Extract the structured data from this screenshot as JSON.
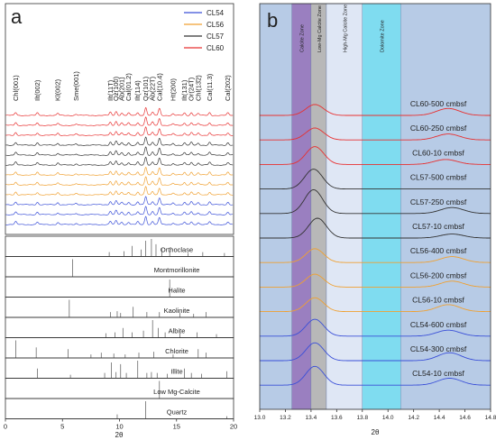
{
  "chart_data": [
    {
      "type": "line",
      "panel_label": "a",
      "xlabel": "2θ",
      "xlim": [
        0,
        20
      ],
      "x_ticks": [
        "0",
        "5",
        "10",
        "15",
        "20"
      ],
      "legend": [
        {
          "name": "CL54",
          "color": "#3a4fd8"
        },
        {
          "name": "CL56",
          "color": "#f0a030"
        },
        {
          "name": "CL57",
          "color": "#333333"
        },
        {
          "name": "CL60",
          "color": "#e83030"
        }
      ],
      "peak_labels": [
        {
          "text": "Chl(001)",
          "x": 0.9
        },
        {
          "text": "Ilt(002)",
          "x": 2.8
        },
        {
          "text": "Kl(002)",
          "x": 4.6
        },
        {
          "text": "Sme(001)",
          "x": 6.2
        },
        {
          "text": "Ilt(11T)",
          "x": 9.2
        },
        {
          "text": "Qz(100)",
          "x": 9.7
        },
        {
          "text": "Ab(201)",
          "x": 10.2
        },
        {
          "text": "Cal(01.2)",
          "x": 10.8
        },
        {
          "text": "Ilt(114)",
          "x": 11.6
        },
        {
          "text": "Qz(101)",
          "x": 12.3
        },
        {
          "text": "Ab(22T)",
          "x": 12.9
        },
        {
          "text": "Cal(10.4)",
          "x": 13.5
        },
        {
          "text": "Ht(200)",
          "x": 14.7
        },
        {
          "text": "Ilt(131)",
          "x": 15.7
        },
        {
          "text": "Or(24T)",
          "x": 16.3
        },
        {
          "text": "Chl(13̄2)",
          "x": 16.9
        },
        {
          "text": "Cal(11.3)",
          "x": 17.9
        },
        {
          "text": "Cal(202)",
          "x": 19.5
        }
      ],
      "series_order": [
        {
          "name": "CL60",
          "color": "#e83030"
        },
        {
          "name": "CL60",
          "color": "#e83030"
        },
        {
          "name": "CL60",
          "color": "#e83030"
        },
        {
          "name": "CL57",
          "color": "#333333"
        },
        {
          "name": "CL57",
          "color": "#333333"
        },
        {
          "name": "CL57",
          "color": "#333333"
        },
        {
          "name": "CL56",
          "color": "#f0a030"
        },
        {
          "name": "CL56",
          "color": "#f0a030"
        },
        {
          "name": "CL56",
          "color": "#f0a030"
        },
        {
          "name": "CL54",
          "color": "#3a4fd8"
        },
        {
          "name": "CL54",
          "color": "#3a4fd8"
        },
        {
          "name": "CL54",
          "color": "#3a4fd8"
        }
      ],
      "peaks_2theta": [
        0.9,
        2.8,
        4.6,
        6.2,
        9.2,
        9.7,
        10.2,
        10.8,
        11.6,
        12.3,
        12.9,
        13.5,
        14.7,
        15.7,
        16.3,
        16.9,
        17.9,
        19.5
      ],
      "peak_intensity": [
        0.35,
        0.3,
        0.25,
        0.15,
        0.4,
        0.5,
        0.3,
        0.3,
        0.35,
        1.0,
        0.4,
        0.85,
        0.2,
        0.3,
        0.35,
        0.25,
        0.35,
        0.3
      ],
      "reference_patterns": [
        {
          "name": "Orthoclase",
          "lines": [
            [
              9.1,
              0.25
            ],
            [
              10.4,
              0.3
            ],
            [
              11.1,
              0.6
            ],
            [
              11.9,
              0.4
            ],
            [
              12.3,
              0.9
            ],
            [
              12.8,
              1.0
            ],
            [
              13.2,
              0.7
            ],
            [
              13.7,
              0.45
            ],
            [
              14.4,
              0.3
            ],
            [
              16.0,
              0.2
            ],
            [
              17.3,
              0.25
            ],
            [
              19.2,
              0.2
            ]
          ]
        },
        {
          "name": "Montmorillonite",
          "lines": [
            [
              5.9,
              1.0
            ]
          ]
        },
        {
          "name": "Halite",
          "lines": [
            [
              14.4,
              1.0
            ]
          ]
        },
        {
          "name": "Kaolinite",
          "lines": [
            [
              5.6,
              1.0
            ],
            [
              9.2,
              0.3
            ],
            [
              9.8,
              0.35
            ],
            [
              10.1,
              0.25
            ],
            [
              11.2,
              0.6
            ],
            [
              12.4,
              0.3
            ],
            [
              13.5,
              0.3
            ],
            [
              15.3,
              0.25
            ],
            [
              16.5,
              0.2
            ],
            [
              17.6,
              0.3
            ]
          ]
        },
        {
          "name": "Albite",
          "lines": [
            [
              8.8,
              0.25
            ],
            [
              9.6,
              0.3
            ],
            [
              10.3,
              0.55
            ],
            [
              11.1,
              0.3
            ],
            [
              12.1,
              0.4
            ],
            [
              12.9,
              1.0
            ],
            [
              13.4,
              0.55
            ],
            [
              14.0,
              0.3
            ],
            [
              15.3,
              0.25
            ],
            [
              16.8,
              0.3
            ],
            [
              18.5,
              0.2
            ]
          ]
        },
        {
          "name": "Chlorite",
          "lines": [
            [
              0.9,
              1.0
            ],
            [
              2.7,
              0.6
            ],
            [
              5.5,
              0.5
            ],
            [
              7.5,
              0.2
            ],
            [
              8.4,
              0.3
            ],
            [
              9.5,
              0.25
            ],
            [
              10.5,
              0.2
            ],
            [
              11.7,
              0.3
            ],
            [
              13.0,
              0.35
            ],
            [
              14.7,
              0.2
            ],
            [
              16.9,
              0.5
            ],
            [
              17.6,
              0.3
            ]
          ]
        },
        {
          "name": "Illite",
          "lines": [
            [
              2.8,
              0.55
            ],
            [
              5.7,
              0.2
            ],
            [
              8.7,
              0.3
            ],
            [
              9.3,
              0.9
            ],
            [
              9.7,
              0.35
            ],
            [
              10.1,
              0.8
            ],
            [
              10.6,
              0.3
            ],
            [
              11.6,
              1.0
            ],
            [
              12.4,
              0.3
            ],
            [
              12.8,
              0.35
            ],
            [
              13.3,
              0.3
            ],
            [
              14.2,
              0.25
            ],
            [
              15.7,
              0.55
            ],
            [
              16.3,
              0.3
            ],
            [
              17.2,
              0.25
            ],
            [
              19.4,
              0.4
            ]
          ]
        },
        {
          "name": "Low Mg-Calcite",
          "lines": [
            [
              13.5,
              1.0
            ]
          ]
        },
        {
          "name": "Quartz",
          "lines": [
            [
              9.8,
              0.25
            ],
            [
              12.3,
              1.0
            ],
            [
              19.4,
              0.15
            ]
          ]
        }
      ]
    },
    {
      "type": "line",
      "panel_label": "b",
      "xlabel": "2θ",
      "xlim": [
        13.0,
        14.8
      ],
      "x_ticks": [
        "13.0",
        "13.2",
        "13.4",
        "13.6",
        "13.8",
        "14.0",
        "14.2",
        "14.4",
        "14.6",
        "14.8"
      ],
      "zones": [
        {
          "name": "Calcite Zone",
          "from": 13.25,
          "to": 13.4,
          "color": "#9a7fc0"
        },
        {
          "name": "Low-Mg Calcite Zone",
          "from": 13.4,
          "to": 13.52,
          "color": "#b8b8b8"
        },
        {
          "name": "High-Mg Calcite Zone",
          "from": 13.52,
          "to": 13.8,
          "color": "#dfe7f5"
        },
        {
          "name": "Dolomite Zone",
          "from": 13.8,
          "to": 14.1,
          "color": "#7fdcf0"
        }
      ],
      "background_color": "#b7cbe6",
      "series": [
        {
          "name": "CL60-500 cmbsf",
          "color": "#e83030",
          "peak": 13.43,
          "height": 0.55,
          "second_peak": 14.47,
          "second_height": 0.35
        },
        {
          "name": "CL60-250 cmbsf",
          "color": "#e83030",
          "peak": 13.43,
          "height": 0.6,
          "second_peak": 14.47,
          "second_height": 0.3
        },
        {
          "name": "CL60-10 cmbsf",
          "color": "#e83030",
          "peak": 13.43,
          "height": 0.9,
          "second_peak": 14.45,
          "second_height": 0.25
        },
        {
          "name": "CL57-500 cmbsf",
          "color": "#333333",
          "peak": 13.42,
          "height": 1.0,
          "second_peak": 14.5,
          "second_height": 0.0
        },
        {
          "name": "CL57-250 cmbsf",
          "color": "#333333",
          "peak": 13.42,
          "height": 1.2,
          "second_peak": 14.5,
          "second_height": 0.3
        },
        {
          "name": "CL57-10 cmbsf",
          "color": "#333333",
          "peak": 13.45,
          "height": 1.0,
          "second_peak": 14.5,
          "second_height": 0.2
        },
        {
          "name": "CL56-400 cmbsf",
          "color": "#f0a030",
          "peak": 13.43,
          "height": 0.7,
          "second_peak": 14.5,
          "second_height": 0.3
        },
        {
          "name": "CL56-200 cmbsf",
          "color": "#f0a030",
          "peak": 13.43,
          "height": 0.65,
          "second_peak": 14.5,
          "second_height": 0.3
        },
        {
          "name": "CL56-10 cmbsf",
          "color": "#f0a030",
          "peak": 13.43,
          "height": 0.7,
          "second_peak": 14.47,
          "second_height": 0.35
        },
        {
          "name": "CL54-600 cmbsf",
          "color": "#3a4fd8",
          "peak": 13.43,
          "height": 0.85,
          "second_peak": 14.47,
          "second_height": 0.3
        },
        {
          "name": "CL54-300 cmbsf",
          "color": "#3a4fd8",
          "peak": 13.43,
          "height": 0.9,
          "second_peak": 14.48,
          "second_height": 0.4
        },
        {
          "name": "CL54-10 cmbsf",
          "color": "#3a4fd8",
          "peak": 13.43,
          "height": 0.95,
          "second_peak": 14.48,
          "second_height": 0.35
        }
      ]
    }
  ]
}
